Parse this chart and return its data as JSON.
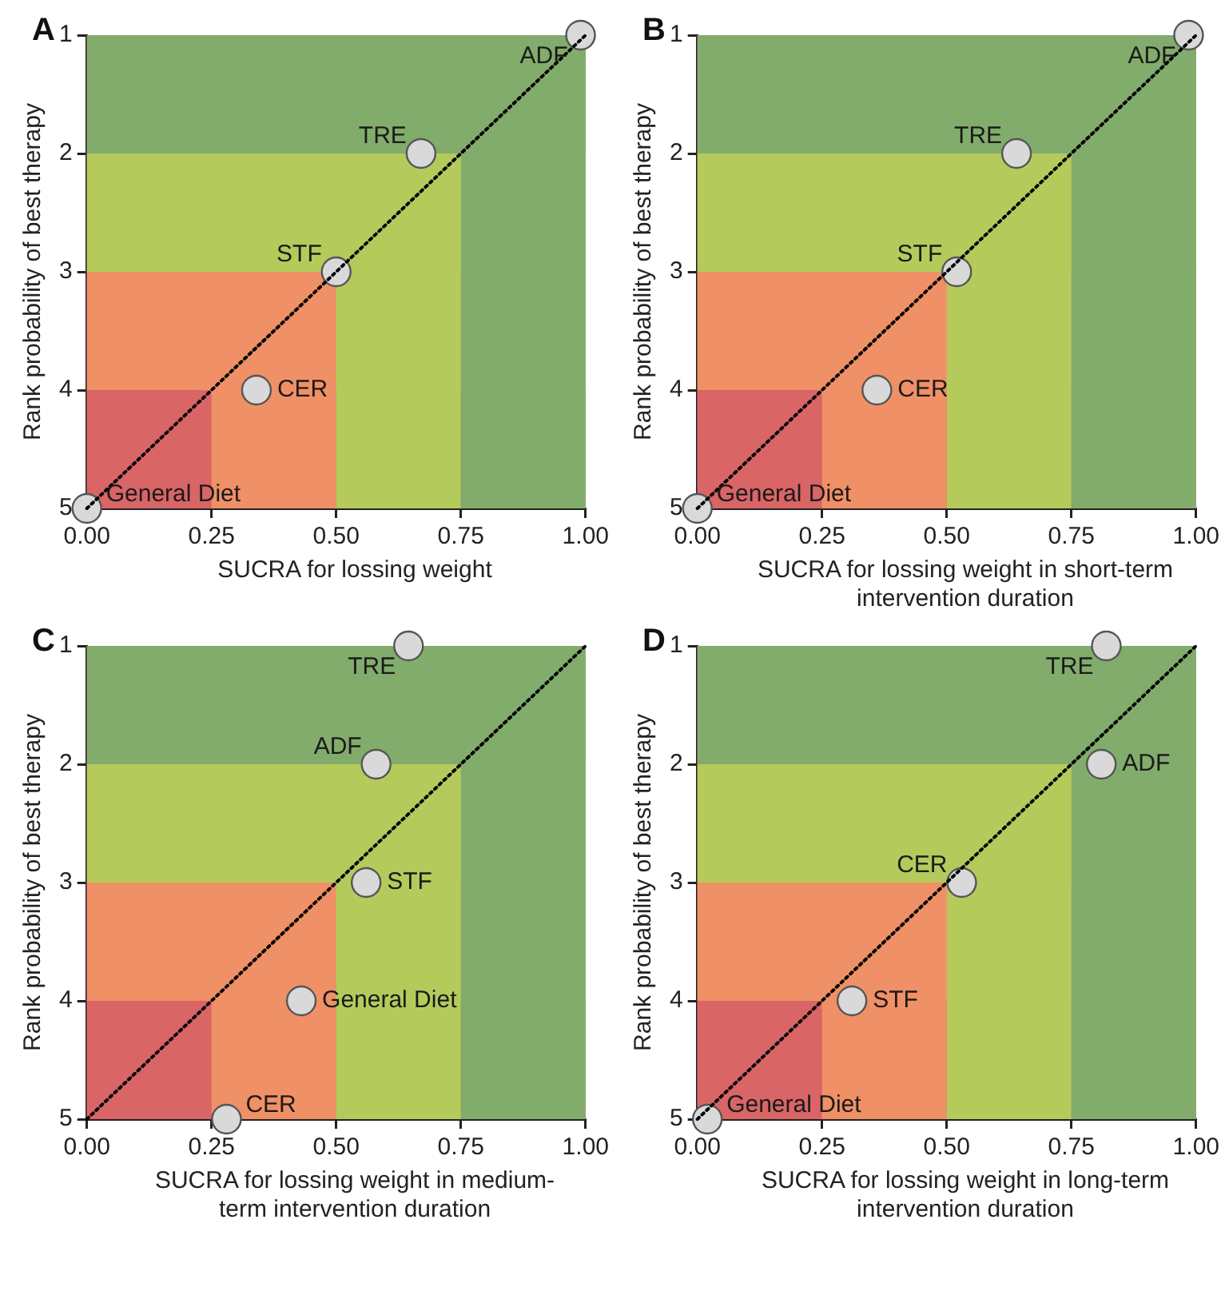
{
  "chart_data": [
    {
      "type": "scatter",
      "title": "A",
      "xlabel": "SUCRA for lossing weight",
      "ylabel": "Rank probability of best therapy",
      "xlim": [
        0,
        1
      ],
      "ylim": [
        5,
        1
      ],
      "xticks": [
        {
          "value": 0,
          "label": "0.00"
        },
        {
          "value": 0.25,
          "label": "0.25"
        },
        {
          "value": 0.5,
          "label": "0.50"
        },
        {
          "value": 0.75,
          "label": "0.75"
        },
        {
          "value": 1,
          "label": "1.00"
        }
      ],
      "yticks": [
        1,
        2,
        3,
        4,
        5
      ],
      "marker": "circle",
      "bands": [
        {
          "axis": "x",
          "from": 0,
          "to": 0.25,
          "color": "#d96566"
        },
        {
          "axis": "y",
          "from": 4,
          "to": 5,
          "color": "#d96566"
        },
        {
          "axis": "x",
          "from": 0.25,
          "to": 0.5,
          "color": "#f09066"
        },
        {
          "axis": "y",
          "from": 3,
          "to": 4,
          "color": "#f09066"
        },
        {
          "axis": "x",
          "from": 0.5,
          "to": 0.75,
          "color": "#b4cb5c"
        },
        {
          "axis": "y",
          "from": 2,
          "to": 3,
          "color": "#b4cb5c"
        },
        {
          "axis": "x",
          "from": 0.75,
          "to": 1,
          "color": "#82ac6c"
        },
        {
          "axis": "y",
          "from": 1,
          "to": 2,
          "color": "#82ac6c"
        }
      ],
      "series": [
        {
          "type": "line",
          "x": [
            0,
            1
          ],
          "values": [
            5,
            1
          ],
          "color": "#000000",
          "line_style": "dotted",
          "marker": "none"
        },
        {
          "type": "scatter",
          "x": [
            0.99,
            0.67,
            0.5,
            0.34,
            0
          ],
          "values": [
            1,
            2,
            3,
            4,
            5
          ],
          "color": "#d9d9d9"
        }
      ],
      "annotations": [
        {
          "text": "ADF",
          "x": 0.99,
          "y": 1
        },
        {
          "text": "TRE",
          "x": 0.67,
          "y": 2
        },
        {
          "text": "STF",
          "x": 0.5,
          "y": 3
        },
        {
          "text": "CER",
          "x": 0.34,
          "y": 4
        },
        {
          "text": "General Diet",
          "x": 0,
          "y": 5
        }
      ]
    },
    {
      "type": "scatter",
      "title": "B",
      "xlabel": "SUCRA for lossing weight in short-term intervention duration",
      "ylabel": "Rank probability of best therapy",
      "xlim": [
        0,
        1
      ],
      "ylim": [
        5,
        1
      ],
      "xticks": [
        {
          "value": 0,
          "label": "0.00"
        },
        {
          "value": 0.25,
          "label": "0.25"
        },
        {
          "value": 0.5,
          "label": "0.50"
        },
        {
          "value": 0.75,
          "label": "0.75"
        },
        {
          "value": 1,
          "label": "1.00"
        }
      ],
      "yticks": [
        1,
        2,
        3,
        4,
        5
      ],
      "marker": "circle",
      "bands": [
        {
          "axis": "x",
          "from": 0,
          "to": 0.25,
          "color": "#d96566"
        },
        {
          "axis": "y",
          "from": 4,
          "to": 5,
          "color": "#d96566"
        },
        {
          "axis": "x",
          "from": 0.25,
          "to": 0.5,
          "color": "#f09066"
        },
        {
          "axis": "y",
          "from": 3,
          "to": 4,
          "color": "#f09066"
        },
        {
          "axis": "x",
          "from": 0.5,
          "to": 0.75,
          "color": "#b4cb5c"
        },
        {
          "axis": "y",
          "from": 2,
          "to": 3,
          "color": "#b4cb5c"
        },
        {
          "axis": "x",
          "from": 0.75,
          "to": 1,
          "color": "#82ac6c"
        },
        {
          "axis": "y",
          "from": 1,
          "to": 2,
          "color": "#82ac6c"
        }
      ],
      "series": [
        {
          "type": "line",
          "x": [
            0,
            1
          ],
          "values": [
            5,
            1
          ],
          "color": "#000000",
          "line_style": "dotted",
          "marker": "none"
        },
        {
          "type": "scatter",
          "x": [
            0.985,
            0.64,
            0.52,
            0.36,
            0
          ],
          "values": [
            1,
            2,
            3,
            4,
            5
          ],
          "color": "#d9d9d9"
        }
      ],
      "annotations": [
        {
          "text": "ADF",
          "x": 0.985,
          "y": 1
        },
        {
          "text": "TRE",
          "x": 0.64,
          "y": 2
        },
        {
          "text": "STF",
          "x": 0.52,
          "y": 3
        },
        {
          "text": "CER",
          "x": 0.36,
          "y": 4
        },
        {
          "text": "General Diet",
          "x": 0,
          "y": 5
        }
      ]
    },
    {
      "type": "scatter",
      "title": "C",
      "xlabel": "SUCRA for lossing weight in medium-term intervention duration",
      "ylabel": "Rank probability of best therapy",
      "xlim": [
        0,
        1
      ],
      "ylim": [
        5,
        1
      ],
      "xticks": [
        {
          "value": 0,
          "label": "0.00"
        },
        {
          "value": 0.25,
          "label": "0.25"
        },
        {
          "value": 0.5,
          "label": "0.50"
        },
        {
          "value": 0.75,
          "label": "0.75"
        },
        {
          "value": 1,
          "label": "1.00"
        }
      ],
      "yticks": [
        1,
        2,
        3,
        4,
        5
      ],
      "marker": "circle",
      "bands": [
        {
          "axis": "x",
          "from": 0,
          "to": 0.25,
          "color": "#d96566"
        },
        {
          "axis": "y",
          "from": 4,
          "to": 5,
          "color": "#d96566"
        },
        {
          "axis": "x",
          "from": 0.25,
          "to": 0.5,
          "color": "#f09066"
        },
        {
          "axis": "y",
          "from": 3,
          "to": 4,
          "color": "#f09066"
        },
        {
          "axis": "x",
          "from": 0.5,
          "to": 0.75,
          "color": "#b4cb5c"
        },
        {
          "axis": "y",
          "from": 2,
          "to": 3,
          "color": "#b4cb5c"
        },
        {
          "axis": "x",
          "from": 0.75,
          "to": 1,
          "color": "#82ac6c"
        },
        {
          "axis": "y",
          "from": 1,
          "to": 2,
          "color": "#82ac6c"
        }
      ],
      "series": [
        {
          "type": "line",
          "x": [
            0,
            1
          ],
          "values": [
            5,
            1
          ],
          "color": "#000000",
          "line_style": "dotted",
          "marker": "none"
        },
        {
          "type": "scatter",
          "x": [
            0.645,
            0.58,
            0.56,
            0.43,
            0.28
          ],
          "values": [
            1,
            2,
            3,
            4,
            5
          ],
          "color": "#d9d9d9"
        }
      ],
      "annotations": [
        {
          "text": "TRE",
          "x": 0.645,
          "y": 1
        },
        {
          "text": "ADF",
          "x": 0.58,
          "y": 2
        },
        {
          "text": "STF",
          "x": 0.56,
          "y": 3
        },
        {
          "text": "General Diet",
          "x": 0.43,
          "y": 4
        },
        {
          "text": "CER",
          "x": 0.28,
          "y": 5
        }
      ]
    },
    {
      "type": "scatter",
      "title": "D",
      "xlabel": "SUCRA for lossing weight in long-term intervention duration",
      "ylabel": "Rank probability of best therapy",
      "xlim": [
        0,
        1
      ],
      "ylim": [
        5,
        1
      ],
      "xticks": [
        {
          "value": 0,
          "label": "0.00"
        },
        {
          "value": 0.25,
          "label": "0.25"
        },
        {
          "value": 0.5,
          "label": "0.50"
        },
        {
          "value": 0.75,
          "label": "0.75"
        },
        {
          "value": 1,
          "label": "1.00"
        }
      ],
      "yticks": [
        1,
        2,
        3,
        4,
        5
      ],
      "marker": "circle",
      "bands": [
        {
          "axis": "x",
          "from": 0,
          "to": 0.25,
          "color": "#d96566"
        },
        {
          "axis": "y",
          "from": 4,
          "to": 5,
          "color": "#d96566"
        },
        {
          "axis": "x",
          "from": 0.25,
          "to": 0.5,
          "color": "#f09066"
        },
        {
          "axis": "y",
          "from": 3,
          "to": 4,
          "color": "#f09066"
        },
        {
          "axis": "x",
          "from": 0.5,
          "to": 0.75,
          "color": "#b4cb5c"
        },
        {
          "axis": "y",
          "from": 2,
          "to": 3,
          "color": "#b4cb5c"
        },
        {
          "axis": "x",
          "from": 0.75,
          "to": 1,
          "color": "#82ac6c"
        },
        {
          "axis": "y",
          "from": 1,
          "to": 2,
          "color": "#82ac6c"
        }
      ],
      "series": [
        {
          "type": "line",
          "x": [
            0,
            1
          ],
          "values": [
            5,
            1
          ],
          "color": "#000000",
          "line_style": "dotted",
          "marker": "none"
        },
        {
          "type": "scatter",
          "x": [
            0.82,
            0.81,
            0.53,
            0.31,
            0.02
          ],
          "values": [
            1,
            2,
            3,
            4,
            5
          ],
          "color": "#d9d9d9"
        }
      ],
      "annotations": [
        {
          "text": "TRE",
          "x": 0.82,
          "y": 1
        },
        {
          "text": "ADF",
          "x": 0.81,
          "y": 2
        },
        {
          "text": "CER",
          "x": 0.53,
          "y": 3
        },
        {
          "text": "STF",
          "x": 0.31,
          "y": 4
        },
        {
          "text": "General Diet",
          "x": 0.02,
          "y": 5
        }
      ]
    }
  ]
}
